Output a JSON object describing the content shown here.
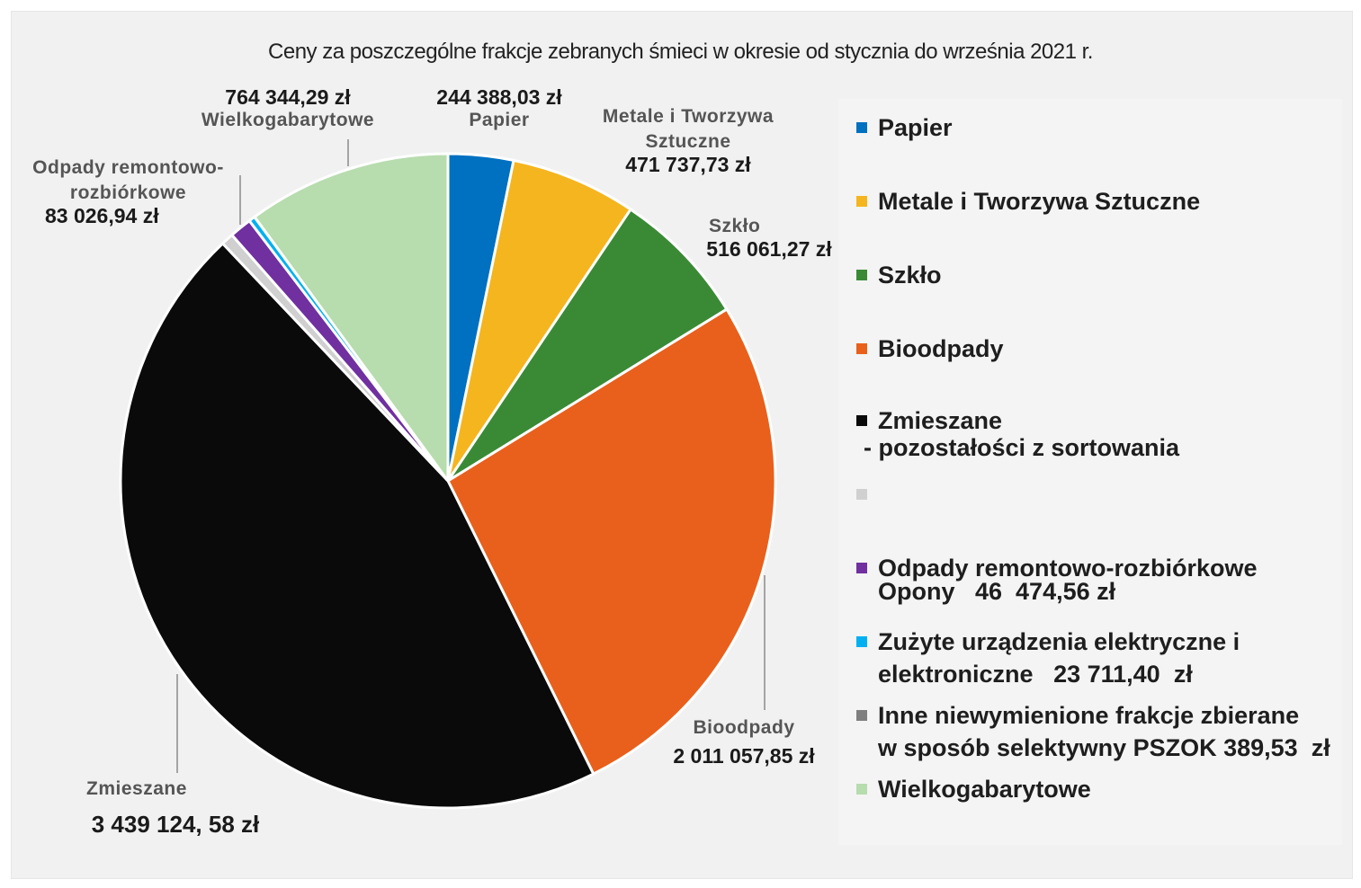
{
  "chart_data": {
    "type": "pie",
    "title": "Ceny za poszczególne frakcje zebranych śmieci w okresie od stycznia do września 2021 r.",
    "slices": [
      {
        "key": "papier",
        "name": "Papier",
        "value": 244388.03,
        "value_label": "244 388,03 zł",
        "color": "#0070c0"
      },
      {
        "key": "metale",
        "name": "Metale i Tworzywa Sztuczne",
        "value": 471737.73,
        "value_label": "471 737,73 zł",
        "color": "#f5b51f"
      },
      {
        "key": "szklo",
        "name": "Szkło",
        "value": 516061.27,
        "value_label": "516 061,27 zł",
        "color": "#3a8a35"
      },
      {
        "key": "bioodpady",
        "name": "Bioodpady",
        "value": 2011057.85,
        "value_label": "2 011 057,85 zł",
        "color": "#e8601c"
      },
      {
        "key": "zmieszane",
        "name": "Zmieszane",
        "value": 3439124.58,
        "value_label": "3 439 124, 58 zł",
        "color": "#0a0a0a"
      },
      {
        "key": "opony",
        "name": "Opony",
        "value": 46474.56,
        "value_label": "46 474,56 zł",
        "color": "#d0d0d0"
      },
      {
        "key": "remontowe",
        "name": "Odpady remontowo-rozbiórkowe",
        "value": 83026.94,
        "value_label": "83 026,94 zł",
        "color": "#7030a0"
      },
      {
        "key": "elektro",
        "name": "Zużyte urządzenia elektryczne i elektroniczne",
        "value": 23711.4,
        "value_label": "23 711,40 zł",
        "color": "#00b0f0"
      },
      {
        "key": "inne",
        "name": "Inne niewymienione frakcje zbierane w sposób selektywny PSZOK",
        "value": 389.53,
        "value_label": "389,53 zł",
        "color": "#7f7f7f"
      },
      {
        "key": "wielko",
        "name": "Wielkogabarytowe",
        "value": 764344.29,
        "value_label": "764 344,29 zł",
        "color": "#b7dcae"
      }
    ]
  },
  "labels": {
    "papier": {
      "name": "Papier",
      "value": "244 388,03 zł"
    },
    "metale": {
      "name_line1": "Metale i Tworzywa",
      "name_line2": "Sztuczne",
      "value": "471 737,73 zł"
    },
    "szklo": {
      "name": "Szkło",
      "value": "516 061,27 zł"
    },
    "bioodpady": {
      "name": "Bioodpady",
      "value": "2 011 057,85 zł"
    },
    "zmieszane": {
      "name": "Zmieszane",
      "value": "3 439 124, 58 zł"
    },
    "remontowe": {
      "name_line1": "Odpady remontowo-",
      "name_line2": "rozbiórkowe",
      "value": "83 026,94 zł"
    },
    "wielko": {
      "name": "Wielkogabarytowe",
      "value": "764 344,29 zł"
    }
  },
  "legend": {
    "papier": "Papier",
    "metale": "Metale i Tworzywa Sztuczne",
    "szklo": "Szkło",
    "bioodpady": "Bioodpady",
    "zmieszane_line1": "Zmieszane",
    "zmieszane_line2": "- pozostałości z sortowania",
    "opony": "Opony   46  474,56 zł",
    "remontowe": "Odpady remontowo-rozbiórkowe",
    "elektro_line1": "Zużyte urządzenia elektryczne i",
    "elektro_line2": "elektroniczne   23 711,40  zł",
    "inne_line1": "Inne niewymienione frakcje zbierane",
    "inne_line2": "w sposób selektywny PSZOK 389,53  zł",
    "wielko": "Wielkogabarytowe"
  }
}
